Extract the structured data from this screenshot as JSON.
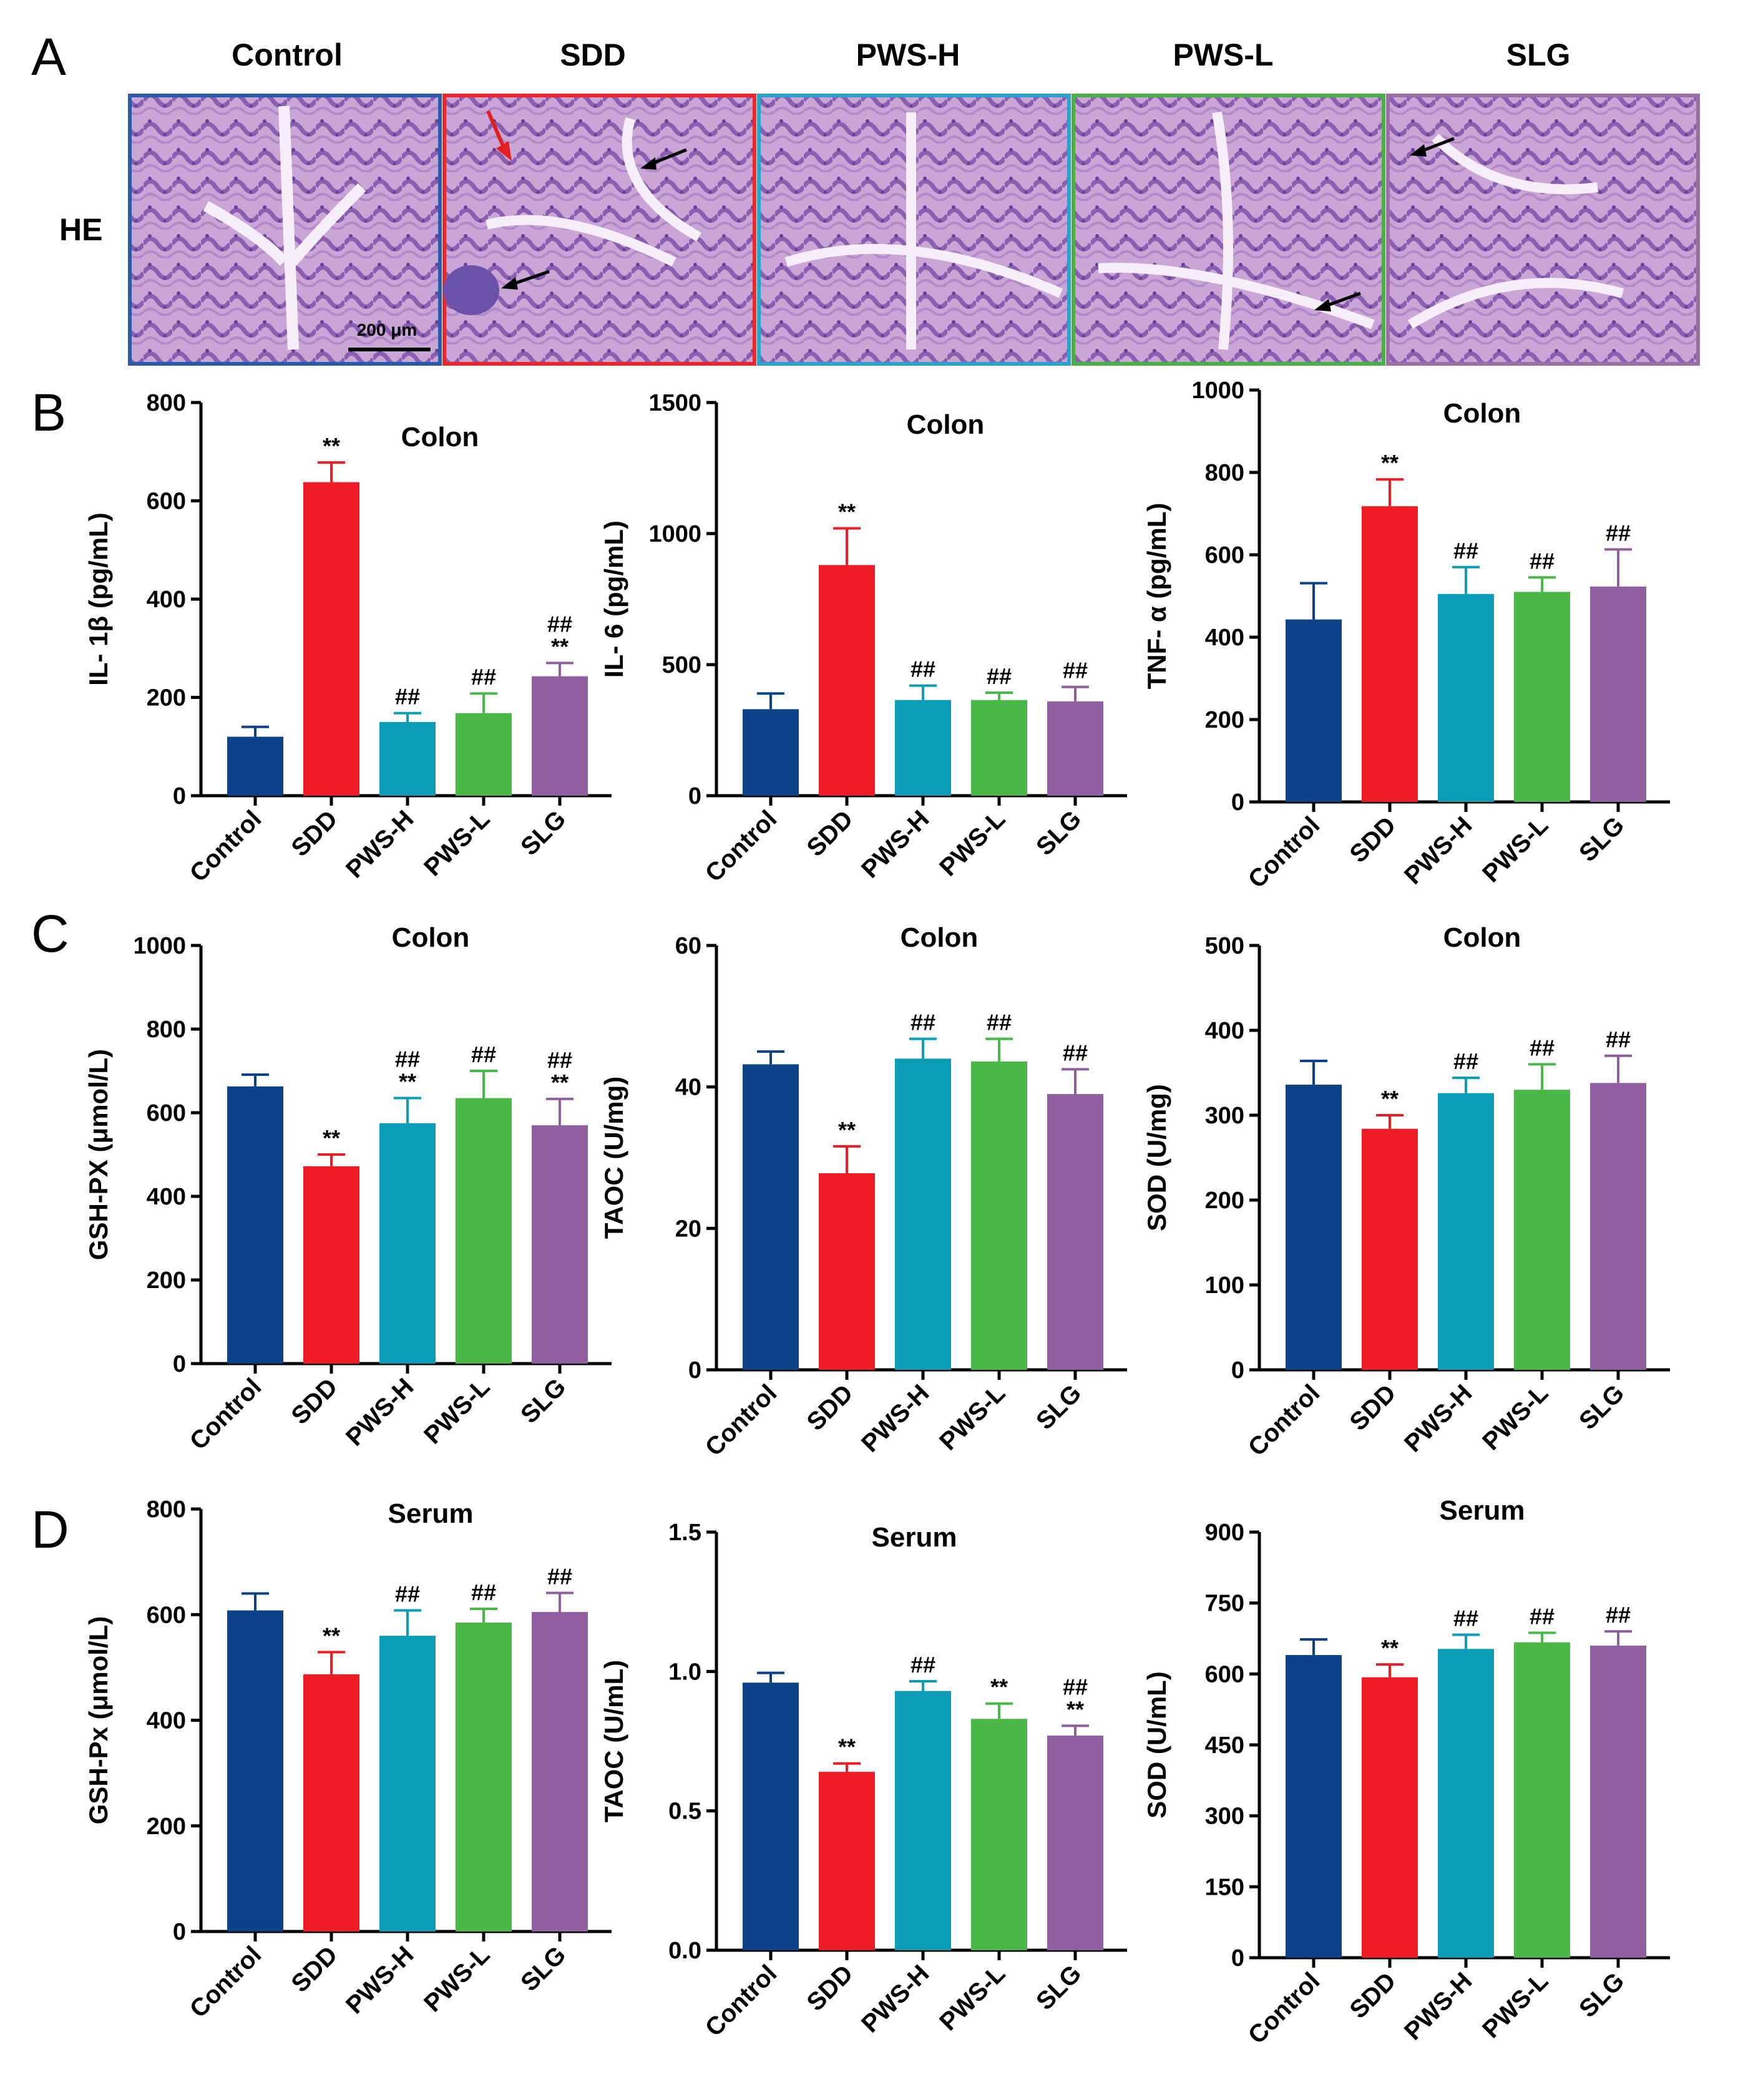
{
  "figure": {
    "panel_labels": [
      "A",
      "B",
      "C",
      "D"
    ],
    "he": {
      "row_label": "HE",
      "groups": [
        "Control",
        "SDD",
        "PWS-H",
        "PWS-L",
        "SLG"
      ],
      "border_colors": [
        "#2a5aa8",
        "#e8262b",
        "#2aa3c9",
        "#49b048",
        "#9b6fa6"
      ],
      "scale_bar": "200 μm"
    }
  },
  "colors": {
    "Control": "#0c4287",
    "SDD": "#ee1c24",
    "PWS-H": "#0b9db5",
    "PWS-L": "#49b848",
    "SLG": "#8f5fa0"
  },
  "chart_data": [
    {
      "id": "B1",
      "type": "bar",
      "title": "Colon",
      "ylabel": "IL- 1β (pg/mL)",
      "categories": [
        "Control",
        "SDD",
        "PWS-H",
        "PWS-L",
        "SLG"
      ],
      "values": [
        120,
        638,
        150,
        168,
        243
      ],
      "errors": [
        20,
        40,
        18,
        40,
        27
      ],
      "ylim": [
        0,
        800
      ],
      "yticks": [
        "0",
        "200",
        "400",
        "600",
        "800"
      ],
      "annotations": [
        [],
        [
          "**"
        ],
        [
          "##"
        ],
        [
          "##"
        ],
        [
          "##",
          "**"
        ]
      ]
    },
    {
      "id": "B2",
      "type": "bar",
      "title": "Colon",
      "ylabel": "IL- 6 (pg/mL)",
      "categories": [
        "Control",
        "SDD",
        "PWS-H",
        "PWS-L",
        "SLG"
      ],
      "values": [
        330,
        880,
        365,
        365,
        360
      ],
      "errors": [
        60,
        140,
        55,
        28,
        55
      ],
      "ylim": [
        0,
        1500
      ],
      "yticks": [
        "0",
        "500",
        "1000",
        "1500"
      ],
      "annotations": [
        [],
        [
          "**"
        ],
        [
          "##"
        ],
        [
          "##"
        ],
        [
          "##"
        ]
      ]
    },
    {
      "id": "B3",
      "type": "bar",
      "title": "Colon",
      "ylabel": "TNF- α (pg/mL)",
      "categories": [
        "Control",
        "SDD",
        "PWS-H",
        "PWS-L",
        "SLG"
      ],
      "values": [
        443,
        718,
        505,
        510,
        523
      ],
      "errors": [
        88,
        65,
        65,
        35,
        90
      ],
      "ylim": [
        0,
        1000
      ],
      "yticks": [
        "0",
        "200",
        "400",
        "600",
        "800",
        "1000"
      ],
      "annotations": [
        [],
        [
          "**"
        ],
        [
          "##"
        ],
        [
          "##"
        ],
        [
          "##"
        ]
      ]
    },
    {
      "id": "C1",
      "type": "bar",
      "title": "Colon",
      "ylabel": "GSH-PX (μmol/L)",
      "categories": [
        "Control",
        "SDD",
        "PWS-H",
        "PWS-L",
        "SLG"
      ],
      "values": [
        663,
        472,
        575,
        635,
        570
      ],
      "errors": [
        28,
        28,
        60,
        65,
        63
      ],
      "ylim": [
        0,
        1000
      ],
      "yticks": [
        "0",
        "200",
        "400",
        "600",
        "800",
        "1000"
      ],
      "annotations": [
        [],
        [
          "**"
        ],
        [
          "##",
          "**"
        ],
        [
          "##"
        ],
        [
          "##",
          "**"
        ]
      ]
    },
    {
      "id": "C2",
      "type": "bar",
      "title": "Colon",
      "ylabel": "TAOC (U/mg)",
      "categories": [
        "Control",
        "SDD",
        "PWS-H",
        "PWS-L",
        "SLG"
      ],
      "values": [
        43.2,
        27.8,
        44.0,
        43.6,
        39.0
      ],
      "errors": [
        1.8,
        3.8,
        2.8,
        3.2,
        3.5
      ],
      "ylim": [
        0,
        60
      ],
      "yticks": [
        "0",
        "20",
        "40",
        "60"
      ],
      "annotations": [
        [],
        [
          "**"
        ],
        [
          "##"
        ],
        [
          "##"
        ],
        [
          "##"
        ]
      ]
    },
    {
      "id": "C3",
      "type": "bar",
      "title": "Colon",
      "ylabel": "SOD (U/mg)",
      "categories": [
        "Control",
        "SDD",
        "PWS-H",
        "PWS-L",
        "SLG"
      ],
      "values": [
        336,
        284,
        326,
        330,
        338
      ],
      "errors": [
        28,
        16,
        18,
        30,
        32
      ],
      "ylim": [
        0,
        500
      ],
      "yticks": [
        "0",
        "100",
        "200",
        "300",
        "400",
        "500"
      ],
      "annotations": [
        [],
        [
          "**"
        ],
        [
          "##"
        ],
        [
          "##"
        ],
        [
          "##"
        ]
      ]
    },
    {
      "id": "D1",
      "type": "bar",
      "title": "Serum",
      "ylabel": "GSH-Px (μmol/L)",
      "categories": [
        "Control",
        "SDD",
        "PWS-H",
        "PWS-L",
        "SLG"
      ],
      "values": [
        608,
        487,
        560,
        585,
        605
      ],
      "errors": [
        32,
        42,
        48,
        26,
        36
      ],
      "ylim": [
        0,
        800
      ],
      "yticks": [
        "0",
        "200",
        "400",
        "600",
        "800"
      ],
      "annotations": [
        [],
        [
          "**"
        ],
        [
          "##"
        ],
        [
          "##"
        ],
        [
          "##"
        ]
      ]
    },
    {
      "id": "D2",
      "type": "bar",
      "title": "Serum",
      "ylabel": "TAOC (U/mL)",
      "categories": [
        "Control",
        "SDD",
        "PWS-H",
        "PWS-L",
        "SLG"
      ],
      "values": [
        0.96,
        0.64,
        0.93,
        0.83,
        0.77
      ],
      "errors": [
        0.035,
        0.03,
        0.035,
        0.055,
        0.035
      ],
      "ylim": [
        0,
        1.5
      ],
      "yticks": [
        "0.0",
        "0.5",
        "1.0",
        "1.5"
      ],
      "annotations": [
        [],
        [
          "**"
        ],
        [
          "##"
        ],
        [
          "**"
        ],
        [
          "##",
          "**"
        ]
      ]
    },
    {
      "id": "D3",
      "type": "bar",
      "title": "Serum",
      "ylabel": "SOD (U/mL)",
      "categories": [
        "Control",
        "SDD",
        "PWS-H",
        "PWS-L",
        "SLG"
      ],
      "values": [
        640,
        593,
        653,
        667,
        660
      ],
      "errors": [
        33,
        27,
        30,
        20,
        30
      ],
      "ylim": [
        0,
        900
      ],
      "yticks": [
        "0",
        "150",
        "300",
        "450",
        "600",
        "750",
        "900"
      ],
      "annotations": [
        [],
        [
          "**"
        ],
        [
          "##"
        ],
        [
          "##"
        ],
        [
          "##"
        ]
      ]
    }
  ]
}
